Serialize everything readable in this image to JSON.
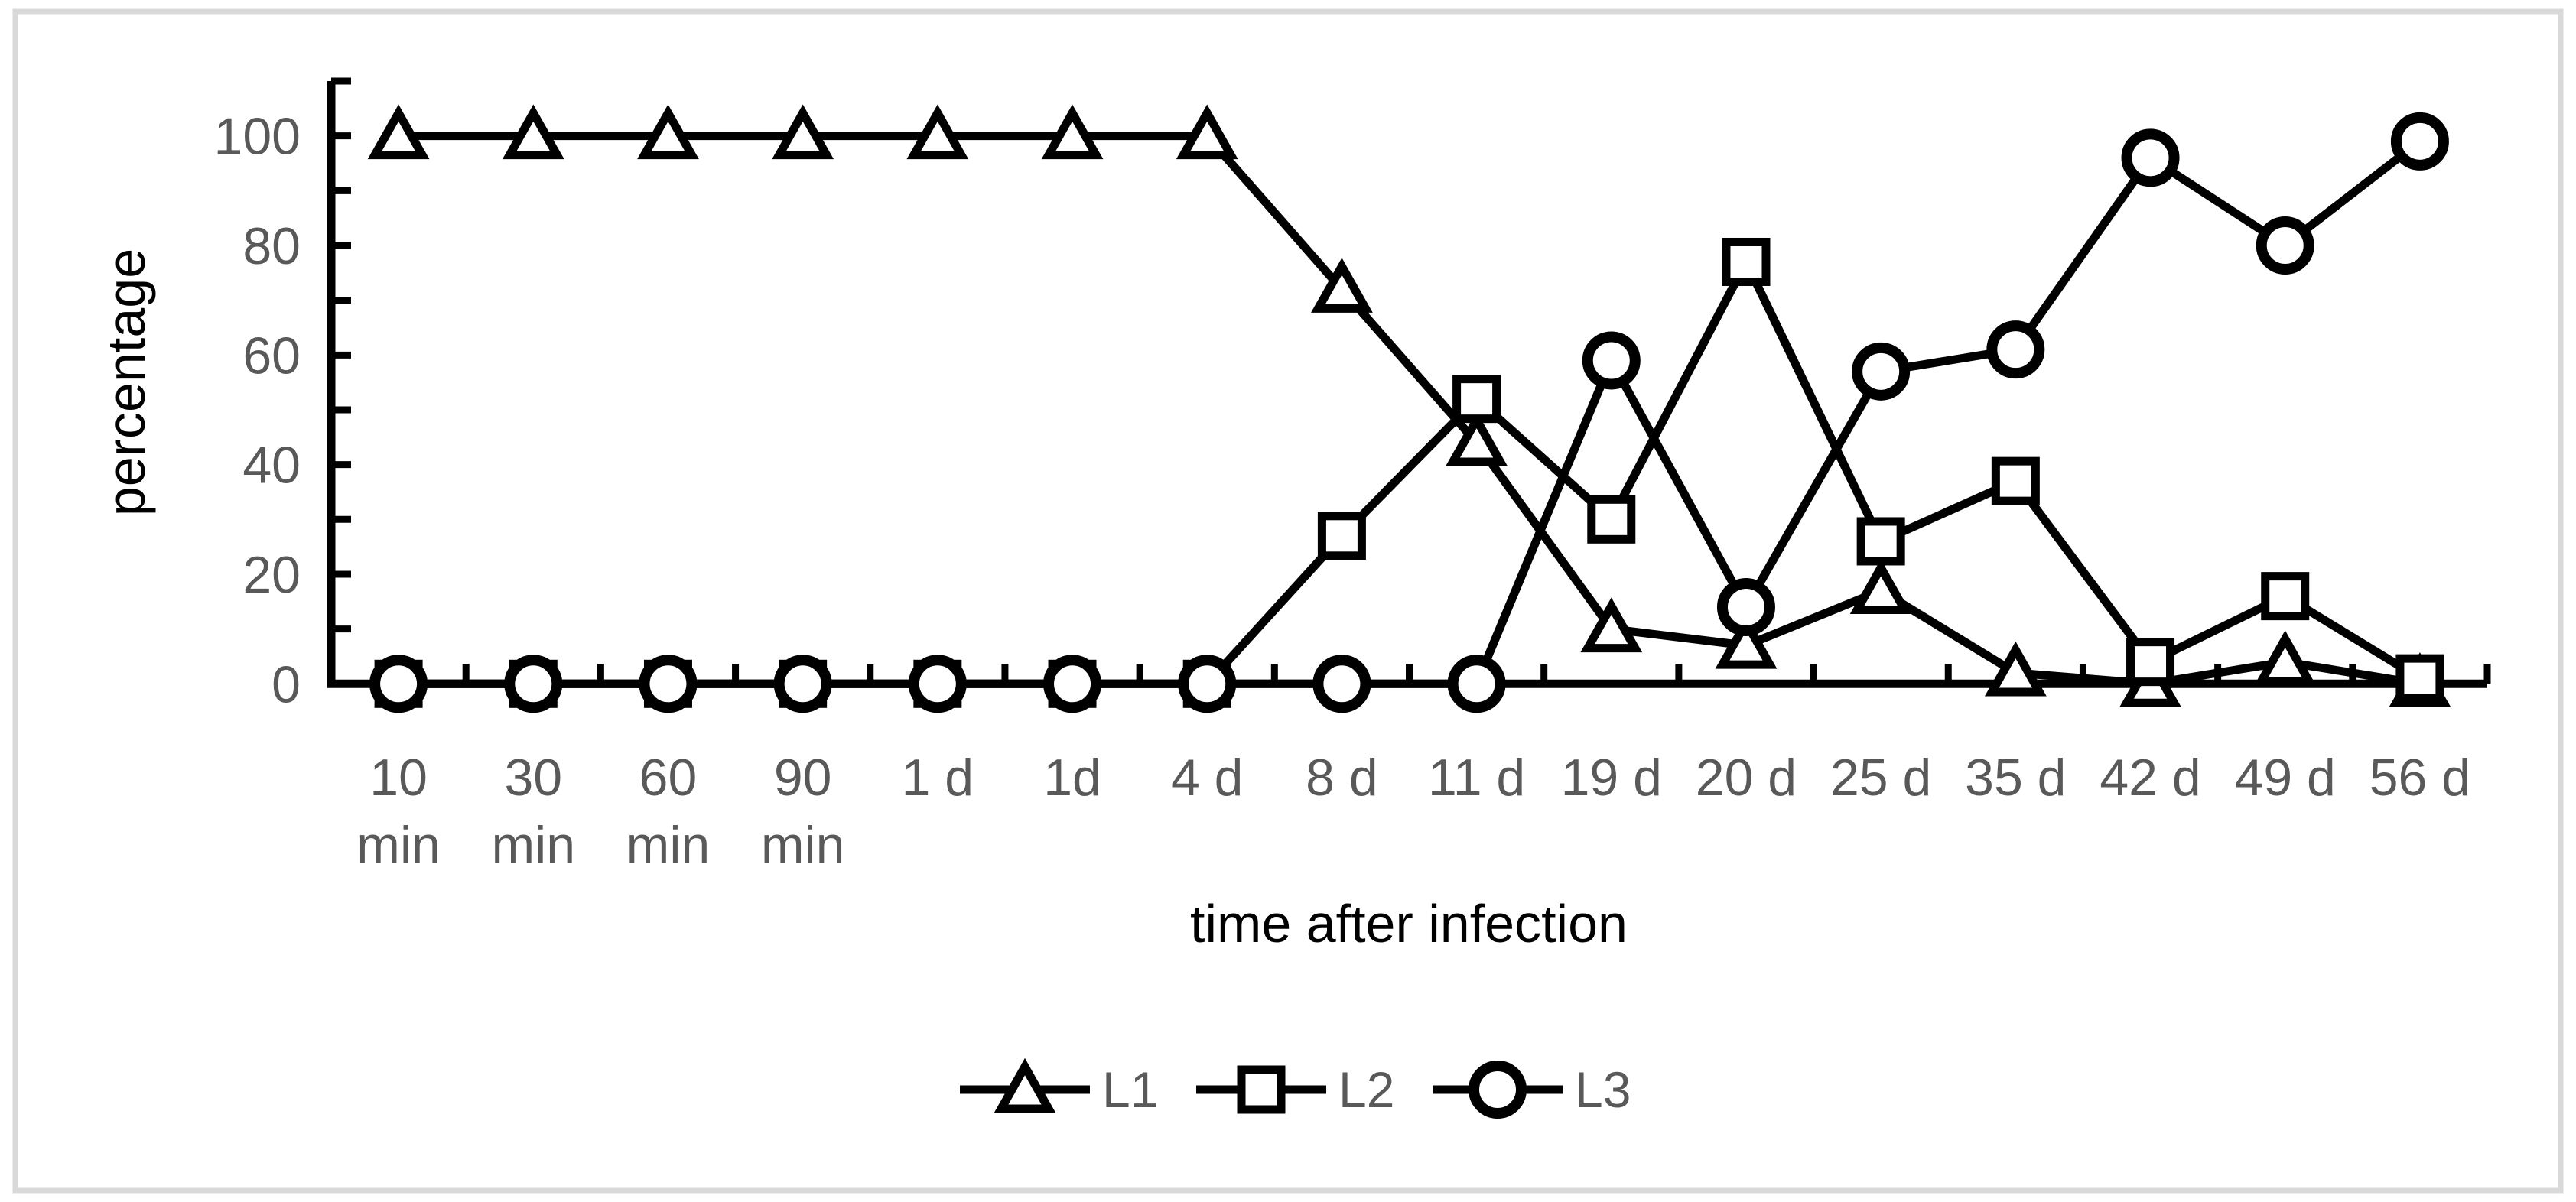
{
  "chart_data": {
    "type": "line",
    "title": "",
    "xlabel": "time after infection",
    "ylabel": "percentage",
    "categories": [
      "10 min",
      "30 min",
      "60 min",
      "90 min",
      "1 d",
      "1d",
      "4 d",
      "8 d",
      "11 d",
      "19 d",
      "20 d",
      "25 d",
      "35 d",
      "42 d",
      "49 d",
      "56 d"
    ],
    "category_label_lines": [
      [
        "10",
        "min"
      ],
      [
        "30",
        "min"
      ],
      [
        "60",
        "min"
      ],
      [
        "90",
        "min"
      ],
      [
        "1 d"
      ],
      [
        "1d"
      ],
      [
        "4 d"
      ],
      [
        "8 d"
      ],
      [
        "11 d"
      ],
      [
        "19 d"
      ],
      [
        "20 d"
      ],
      [
        "25 d"
      ],
      [
        "35 d"
      ],
      [
        "42 d"
      ],
      [
        "49 d"
      ],
      [
        "56 d"
      ]
    ],
    "series": [
      {
        "name": "L1",
        "marker": "triangle",
        "values": [
          100,
          100,
          100,
          100,
          100,
          100,
          100,
          72,
          44,
          10,
          7,
          17,
          2,
          0,
          4,
          0
        ]
      },
      {
        "name": "L2",
        "marker": "square",
        "values": [
          0,
          0,
          0,
          0,
          0,
          0,
          0,
          27,
          52,
          30,
          77,
          26,
          37,
          4,
          16,
          1
        ]
      },
      {
        "name": "L3",
        "marker": "circle",
        "values": [
          0,
          0,
          0,
          0,
          0,
          0,
          0,
          0,
          0,
          59,
          14,
          57,
          61,
          96,
          80,
          99
        ]
      }
    ],
    "ylim": [
      0,
      110
    ],
    "y_ticks_labeled": [
      0,
      20,
      40,
      60,
      80,
      100
    ],
    "y_minor_step": 10,
    "grid": false,
    "legend_position": "bottom",
    "legend_entries": [
      {
        "label": "L1",
        "marker": "triangle"
      },
      {
        "label": "L2",
        "marker": "square"
      },
      {
        "label": "L3",
        "marker": "circle"
      }
    ]
  },
  "colors": {
    "series": "#000000",
    "text": "#595959",
    "border": "#d9d9d9",
    "background": "#ffffff",
    "marker_fill": "#ffffff"
  }
}
